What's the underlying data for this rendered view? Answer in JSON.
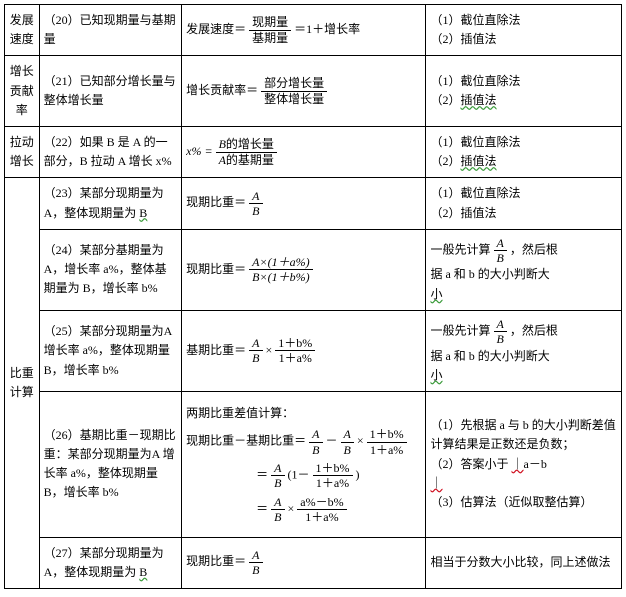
{
  "rows": {
    "r20": {
      "cat": "发展速度",
      "cond": "（20）已知现期量与基期量",
      "formula_prefix": "发展速度＝",
      "frac_n": "现期量",
      "frac_d": "基期量",
      "suffix": "＝1＋增长率",
      "m1": "（1）截位直除法",
      "m2": "（2）插值法"
    },
    "r21": {
      "cat": "增长贡献率",
      "cond": "（21）已知部分增长量与整体增长量",
      "formula_prefix": "增长贡献率＝",
      "frac_n": "部分增长量",
      "frac_d": "整体增长量",
      "m1": "（1）截位直除法",
      "m2_a": "（2）",
      "m2_b": "插值法"
    },
    "r22": {
      "cat": "拉动增长",
      "cond": "（22）如果 B 是 A 的一部分，B 拉动 A 增长 x%",
      "lhs": "x% = ",
      "frac_n_i": "B",
      "frac_n_t": "的增长量",
      "frac_d_i": "A",
      "frac_d_t": "的基期量",
      "m1": "（1）截位直除法",
      "m2_a": "（2）",
      "m2_b": "插值法"
    },
    "bz_cat": "比重计算",
    "r23": {
      "cond_a": "（23）某部分现期量为A，整体现期量为 ",
      "cond_b": "B",
      "prefix": "现期比重＝",
      "fn": "A",
      "fd": "B",
      "m1": "（1）截位直除法",
      "m2": "（2）插值法"
    },
    "r24": {
      "cond": "（24）某部分基期量为A，增长率 a%，整体基期量为 B，增长率 b%",
      "prefix": "现期比重＝",
      "fn": "A×(1＋a%)",
      "fd": "B×(1＋b%)",
      "m_a1": "一般先计算",
      "m_a_fn": "A",
      "m_a_fd": "B",
      "m_a2": "，然后根",
      "m_b1": "据 a 和 b 的大小判断大",
      "m_b2": "小"
    },
    "r25": {
      "cond": "（25）某部分现期量为A 增长率 a%，整体现期量 B，增长率 b%",
      "prefix": "基期比重＝",
      "f1n": "A",
      "f1d": "B",
      "times": "×",
      "f2n": "1＋b%",
      "f2d": "1＋a%",
      "m_a1": "一般先计算",
      "m_a_fn": "A",
      "m_a_fd": "B",
      "m_a2": "，然后根",
      "m_b1": "据 a 和 b 的大小判断大",
      "m_b2": "小"
    },
    "r26": {
      "cond": "（26）基期比重－现期比重：某部分现期量为A 增长率 a%，整体现期量 B，增长率 b%",
      "title": "两期比重差值计算：",
      "l1_prefix": "现期比重－基期比重＝",
      "l1_f1n": "A",
      "l1_f1d": "B",
      "minus": "－",
      "l1_f2n": "A",
      "l1_f2d": "B",
      "times": "×",
      "l1_f3n": "1＋b%",
      "l1_f3d": "1＋a%",
      "l2_eq": "＝",
      "l2_f1n": "A",
      "l2_f1d": "B",
      "l2_open": "(1－",
      "l2_f2n": "1＋b%",
      "l2_f2d": "1＋a%",
      "l2_close": ")",
      "l3_f1n": "A",
      "l3_f1d": "B",
      "l3_f2n": "a%－b%",
      "l3_f2d": "1＋a%",
      "m1": "（1）先根据 a 与 b 的大小判断差值计算结果是正数还是负数；",
      "m2_a": "（2）答案小于 ",
      "m2_b": "｜",
      "m2_c": "a－b",
      "m2_d": "｜",
      "m3": "（3）估算法（近似取整估算）"
    },
    "r27": {
      "cond_a": "（27）某部分现期量为A，整体现期量为 ",
      "cond_b": "B",
      "prefix": "现期比重＝",
      "fn": "A",
      "fd": "B",
      "method": "相当于分数大小比较，同上述做法"
    }
  }
}
